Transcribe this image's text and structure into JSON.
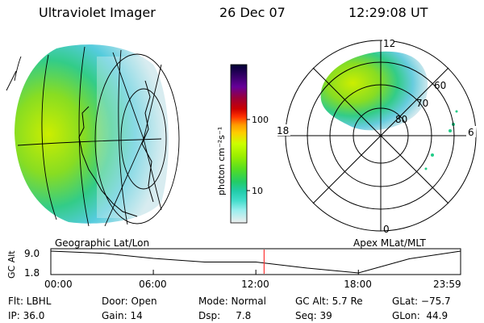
{
  "header": {
    "title": "Ultraviolet Imager",
    "date": "26 Dec 07",
    "time": "12:29:08 UT"
  },
  "left_panel": {
    "caption": "Geographic Lat/Lon",
    "icon": "globe-geographic-projection"
  },
  "right_panel": {
    "caption": "Apex MLat/MLT",
    "icon": "polar-dial",
    "mlt_labels": [
      "12",
      "18",
      "6",
      "0"
    ],
    "mlat_labels": [
      "60",
      "70",
      "80"
    ]
  },
  "colorbar": {
    "label": "photon cm⁻²s⁻¹",
    "ticks": [
      "100",
      "10"
    ],
    "colors": [
      "#000033",
      "#330066",
      "#660099",
      "#99003a",
      "#cc0000",
      "#ff3300",
      "#ff9900",
      "#ffcc00",
      "#ccff00",
      "#99ee00",
      "#55dd22",
      "#22cc66",
      "#22ccaa",
      "#44ddcc",
      "#99eeee",
      "#ccf5f5",
      "#eeeeee"
    ]
  },
  "chart_data": {
    "type": "line",
    "ylabel": "GC Alt",
    "x": [
      "00:00",
      "03:00",
      "06:00",
      "09:00",
      "12:00",
      "15:00",
      "18:00",
      "21:00",
      "23:59"
    ],
    "xticks": [
      "00:00",
      "06:00",
      "12:00",
      "18:00",
      "23:59"
    ],
    "yticks": [
      "9.0",
      "1.8"
    ],
    "ylim": [
      1.8,
      9.0
    ],
    "series": [
      {
        "name": "GC Alt",
        "values": [
          9.0,
          8.3,
          6.6,
          5.4,
          5.4,
          3.4,
          1.8,
          6.5,
          9.0
        ]
      }
    ],
    "current_time_marker": "12:29"
  },
  "info": {
    "row1": {
      "filter": "Flt: LBHL",
      "door": "Door: Open",
      "mode": "Mode: Normal",
      "gc_alt": "GC Alt: 5.7 Re",
      "glat": "GLat: −75.7"
    },
    "row2": {
      "ip": "IP: 36.0",
      "gain": "Gain: 14",
      "dsp": "Dsp:     7.8",
      "seq": "Seq: 39",
      "glon": "GLon:  44.9"
    }
  }
}
